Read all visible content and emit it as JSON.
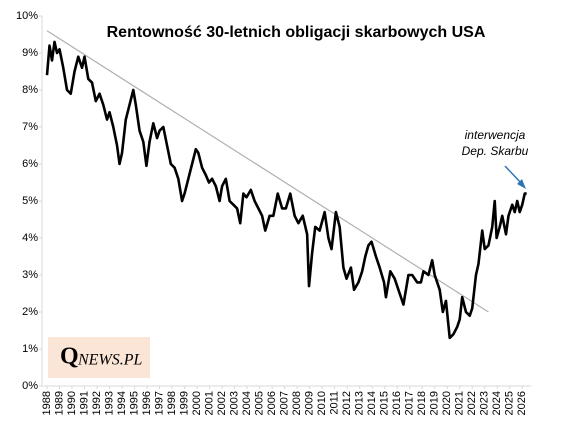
{
  "chart_data": {
    "type": "line",
    "title": "Rentowność 30-letnich obligacji skarbowych USA",
    "xlim": [
      1987.6,
      2026.7
    ],
    "ylim": [
      0,
      10
    ],
    "xticks": [
      1988,
      1989,
      1990,
      1991,
      1992,
      1993,
      1994,
      1995,
      1996,
      1997,
      1998,
      1999,
      2000,
      2001,
      2002,
      2003,
      2004,
      2005,
      2006,
      2007,
      2008,
      2009,
      2010,
      2011,
      2012,
      2013,
      2014,
      2015,
      2016,
      2017,
      2018,
      2019,
      2020,
      2021,
      2022,
      2023,
      2024,
      2025,
      2026
    ],
    "yticks": [
      {
        "value": 0,
        "label": "0%"
      },
      {
        "value": 1,
        "label": "1%"
      },
      {
        "value": 2,
        "label": "2%"
      },
      {
        "value": 3,
        "label": "3%"
      },
      {
        "value": 4,
        "label": "4%"
      },
      {
        "value": 5,
        "label": "5%"
      },
      {
        "value": 6,
        "label": "6%"
      },
      {
        "value": 7,
        "label": "7%"
      },
      {
        "value": 8,
        "label": "8%"
      },
      {
        "value": 9,
        "label": "9%"
      },
      {
        "value": 10,
        "label": "10%"
      }
    ],
    "series": [
      {
        "color": "#000000",
        "x": [
          1988.0,
          1988.2,
          1988.4,
          1988.6,
          1988.8,
          1989.0,
          1989.3,
          1989.6,
          1989.9,
          1990.2,
          1990.5,
          1990.8,
          1991.0,
          1991.3,
          1991.6,
          1991.9,
          1992.2,
          1992.5,
          1992.8,
          1993.0,
          1993.3,
          1993.6,
          1993.8,
          1994.0,
          1994.3,
          1994.6,
          1994.9,
          1995.1,
          1995.4,
          1995.7,
          1995.95,
          1996.2,
          1996.5,
          1996.8,
          1997.0,
          1997.3,
          1997.6,
          1997.9,
          1998.2,
          1998.5,
          1998.8,
          1999.0,
          1999.3,
          1999.6,
          1999.9,
          2000.1,
          2000.4,
          2000.7,
          2000.95,
          2001.2,
          2001.5,
          2001.8,
          2002.0,
          2002.3,
          2002.6,
          2002.9,
          2003.2,
          2003.45,
          2003.7,
          2003.95,
          2004.3,
          2004.6,
          2004.9,
          2005.2,
          2005.45,
          2005.8,
          2006.1,
          2006.45,
          2006.8,
          2007.1,
          2007.45,
          2007.8,
          2008.1,
          2008.45,
          2008.8,
          2008.95,
          2009.2,
          2009.45,
          2009.8,
          2010.2,
          2010.5,
          2010.75,
          2011.1,
          2011.4,
          2011.7,
          2011.95,
          2012.3,
          2012.55,
          2012.9,
          2013.2,
          2013.45,
          2013.7,
          2013.95,
          2014.3,
          2014.6,
          2014.95,
          2015.1,
          2015.45,
          2015.8,
          2016.1,
          2016.5,
          2016.9,
          2017.2,
          2017.6,
          2017.9,
          2018.1,
          2018.5,
          2018.8,
          2019.0,
          2019.4,
          2019.65,
          2019.9,
          2020.2,
          2020.5,
          2020.8,
          2021.0,
          2021.2,
          2021.5,
          2021.8,
          2022.0,
          2022.3,
          2022.5,
          2022.8,
          2023.0,
          2023.3,
          2023.6,
          2023.8,
          2023.95,
          2024.2,
          2024.4,
          2024.7,
          2024.9,
          2025.2,
          2025.4,
          2025.6,
          2025.8,
          2026.0,
          2026.2,
          2026.35
        ],
        "values": [
          8.4,
          9.2,
          8.8,
          9.3,
          9.0,
          9.1,
          8.6,
          8.0,
          7.9,
          8.5,
          8.9,
          8.6,
          8.9,
          8.3,
          8.2,
          7.7,
          7.9,
          7.6,
          7.2,
          7.4,
          7.0,
          6.5,
          6.0,
          6.3,
          7.2,
          7.6,
          8.0,
          7.6,
          6.9,
          6.6,
          5.95,
          6.6,
          7.1,
          6.7,
          6.9,
          7.0,
          6.5,
          6.0,
          5.9,
          5.6,
          5.0,
          5.2,
          5.6,
          6.0,
          6.4,
          6.3,
          5.9,
          5.7,
          5.5,
          5.6,
          5.4,
          5.0,
          5.4,
          5.6,
          5.0,
          4.9,
          4.8,
          4.4,
          5.2,
          5.1,
          5.3,
          5.0,
          4.8,
          4.6,
          4.2,
          4.6,
          4.6,
          5.2,
          4.8,
          4.8,
          5.2,
          4.6,
          4.4,
          4.6,
          4.1,
          2.7,
          3.6,
          4.3,
          4.2,
          4.7,
          4.0,
          3.7,
          4.7,
          4.3,
          3.2,
          2.9,
          3.2,
          2.6,
          2.8,
          3.1,
          3.5,
          3.8,
          3.9,
          3.5,
          3.2,
          2.8,
          2.4,
          3.1,
          2.9,
          2.6,
          2.2,
          3.0,
          3.0,
          2.8,
          2.8,
          3.1,
          3.0,
          3.4,
          3.0,
          2.6,
          2.0,
          2.3,
          1.3,
          1.4,
          1.6,
          1.8,
          2.4,
          2.0,
          1.9,
          2.1,
          3.0,
          3.3,
          4.2,
          3.7,
          3.8,
          4.3,
          5.0,
          4.0,
          4.3,
          4.6,
          4.1,
          4.6,
          4.9,
          4.7,
          5.0,
          4.7,
          4.9,
          5.2,
          5.2
        ]
      }
    ],
    "trend_line": {
      "color": "#b0b0b0",
      "x": [
        1988.0,
        2023.3
      ],
      "values": [
        9.6,
        2.0
      ]
    },
    "annotation": {
      "lines": [
        "interwencja",
        "Dep. Skarbu"
      ]
    },
    "watermark": {
      "q": "Q",
      "rest": "NEWS.PL"
    }
  }
}
